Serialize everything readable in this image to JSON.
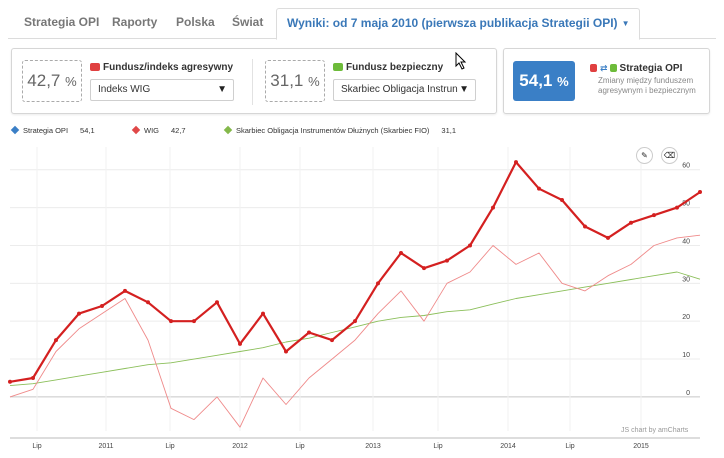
{
  "tabs": [
    {
      "label": "Strategia OPI"
    },
    {
      "label": "Raporty"
    },
    {
      "label": "Polska"
    },
    {
      "label": "Świat"
    },
    {
      "label": "Wyniki: od 7 maja 2010 (pierwsza publikacja Strategii OPI)"
    }
  ],
  "aggressive": {
    "value": "42,7",
    "unit": "%",
    "label": "Fundusz/indeks agresywny",
    "selected": "Indeks WIG",
    "flag_color": "#e04040"
  },
  "safe": {
    "value": "31,1",
    "unit": "%",
    "label": "Fundusz bezpieczny",
    "selected": "Skarbiec Obligacja Instrun",
    "flag_color": "#6dbb3a"
  },
  "strategy": {
    "value": "54,1",
    "unit": "%",
    "label": "Strategia OPI",
    "desc_line1": "Zmiany między funduszem",
    "desc_line2": "agresywnym i bezpiecznym",
    "box_color": "#3a7fc6"
  },
  "legend": [
    {
      "name": "Strategia OPI",
      "value": "54,1",
      "color": "#3a7fc6"
    },
    {
      "name": "WIG",
      "value": "42,7",
      "color": "#e04848"
    },
    {
      "name": "Skarbiec Obligacja Instrumentów Dłużnych (Skarbiec FIO)",
      "value": "31,1",
      "color": "#84b84a"
    }
  ],
  "credit": "JS chart by amCharts",
  "chart_data": {
    "type": "line",
    "x_tick_labels": [
      "Lip",
      "2011",
      "Lip",
      "2012",
      "Lip",
      "2013",
      "Lip",
      "2014",
      "Lip",
      "2015"
    ],
    "y_ticks": [
      0,
      10,
      20,
      30,
      40,
      50,
      60
    ],
    "ylim": [
      -9,
      66
    ],
    "x": [
      "2010-05",
      "2010-07",
      "2010-10",
      "2011-01",
      "2011-03",
      "2011-05",
      "2011-07",
      "2011-08",
      "2011-09",
      "2011-10",
      "2011-12",
      "2012-02",
      "2012-04",
      "2012-06",
      "2012-08",
      "2012-10",
      "2012-12",
      "2013-02",
      "2013-04",
      "2013-06",
      "2013-08",
      "2013-10",
      "2013-12",
      "2014-02",
      "2014-04",
      "2014-06",
      "2014-08",
      "2014-10",
      "2014-12",
      "2015-02",
      "2015-04"
    ],
    "series": [
      {
        "name": "Strategia OPI",
        "values": [
          4,
          5,
          15,
          22,
          24,
          28,
          25,
          20,
          20,
          25,
          14,
          22,
          12,
          17,
          15,
          20,
          30,
          38,
          34,
          36,
          40,
          50,
          62,
          55,
          52,
          45,
          42,
          46,
          48,
          50,
          54.1
        ]
      },
      {
        "name": "WIG",
        "values": [
          0,
          2,
          12,
          18,
          22,
          26,
          15,
          -3,
          -6,
          0,
          -8,
          5,
          -2,
          5,
          10,
          15,
          22,
          28,
          20,
          30,
          33,
          40,
          35,
          38,
          30,
          28,
          32,
          35,
          40,
          42,
          42.7
        ]
      },
      {
        "name": "Skarbiec Obligacja Instrumentów Dłużnych (Skarbiec FIO)",
        "values": [
          3,
          3.5,
          4.5,
          5.5,
          6.5,
          7.5,
          8.5,
          9,
          10,
          11,
          12,
          13,
          14.5,
          15.5,
          17,
          18.5,
          20,
          21,
          21.5,
          22.5,
          23,
          24.5,
          26,
          27,
          28,
          29,
          30,
          31,
          32,
          33,
          31.1
        ]
      }
    ]
  }
}
